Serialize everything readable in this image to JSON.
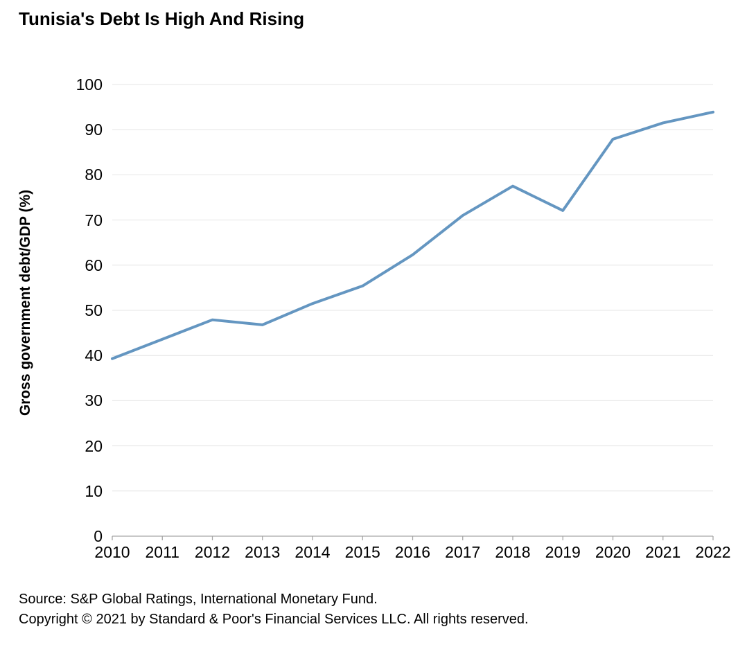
{
  "title": "Tunisia's Debt Is High And Rising",
  "y_axis": {
    "title": "Gross government debt/GDP (%)",
    "ticks": [
      0,
      10,
      20,
      30,
      40,
      50,
      60,
      70,
      80,
      90,
      100
    ]
  },
  "x_axis": {
    "ticks": [
      "2010",
      "2011",
      "2012",
      "2013",
      "2014",
      "2015",
      "2016",
      "2017",
      "2018",
      "2019",
      "2020",
      "2021",
      "2022"
    ]
  },
  "footer": {
    "source": "Source: S&P Global Ratings, International Monetary Fund.",
    "copyright": "Copyright © 2021 by Standard & Poor's Financial Services LLC. All rights reserved."
  },
  "colors": {
    "line": "#6496c1",
    "grid": "#e4e4e4",
    "axis": "#a6a6a6",
    "text": "#000000",
    "background": "#ffffff"
  },
  "chart_data": {
    "type": "line",
    "title": "Tunisia's Debt Is High And Rising",
    "xlabel": "",
    "ylabel": "Gross government debt/GDP (%)",
    "x": [
      2010,
      2011,
      2012,
      2013,
      2014,
      2015,
      2016,
      2017,
      2018,
      2019,
      2020,
      2021,
      2022
    ],
    "series": [
      {
        "name": "Gross government debt/GDP (%)",
        "values": [
          39.3,
          43.6,
          47.9,
          46.8,
          51.5,
          55.4,
          62.3,
          71.0,
          77.5,
          72.1,
          87.9,
          91.5,
          93.9
        ]
      }
    ],
    "ylim": [
      0,
      100
    ],
    "ytick_step": 10,
    "grid": "horizontal",
    "legend": "none",
    "line_color": "#6496c1"
  }
}
